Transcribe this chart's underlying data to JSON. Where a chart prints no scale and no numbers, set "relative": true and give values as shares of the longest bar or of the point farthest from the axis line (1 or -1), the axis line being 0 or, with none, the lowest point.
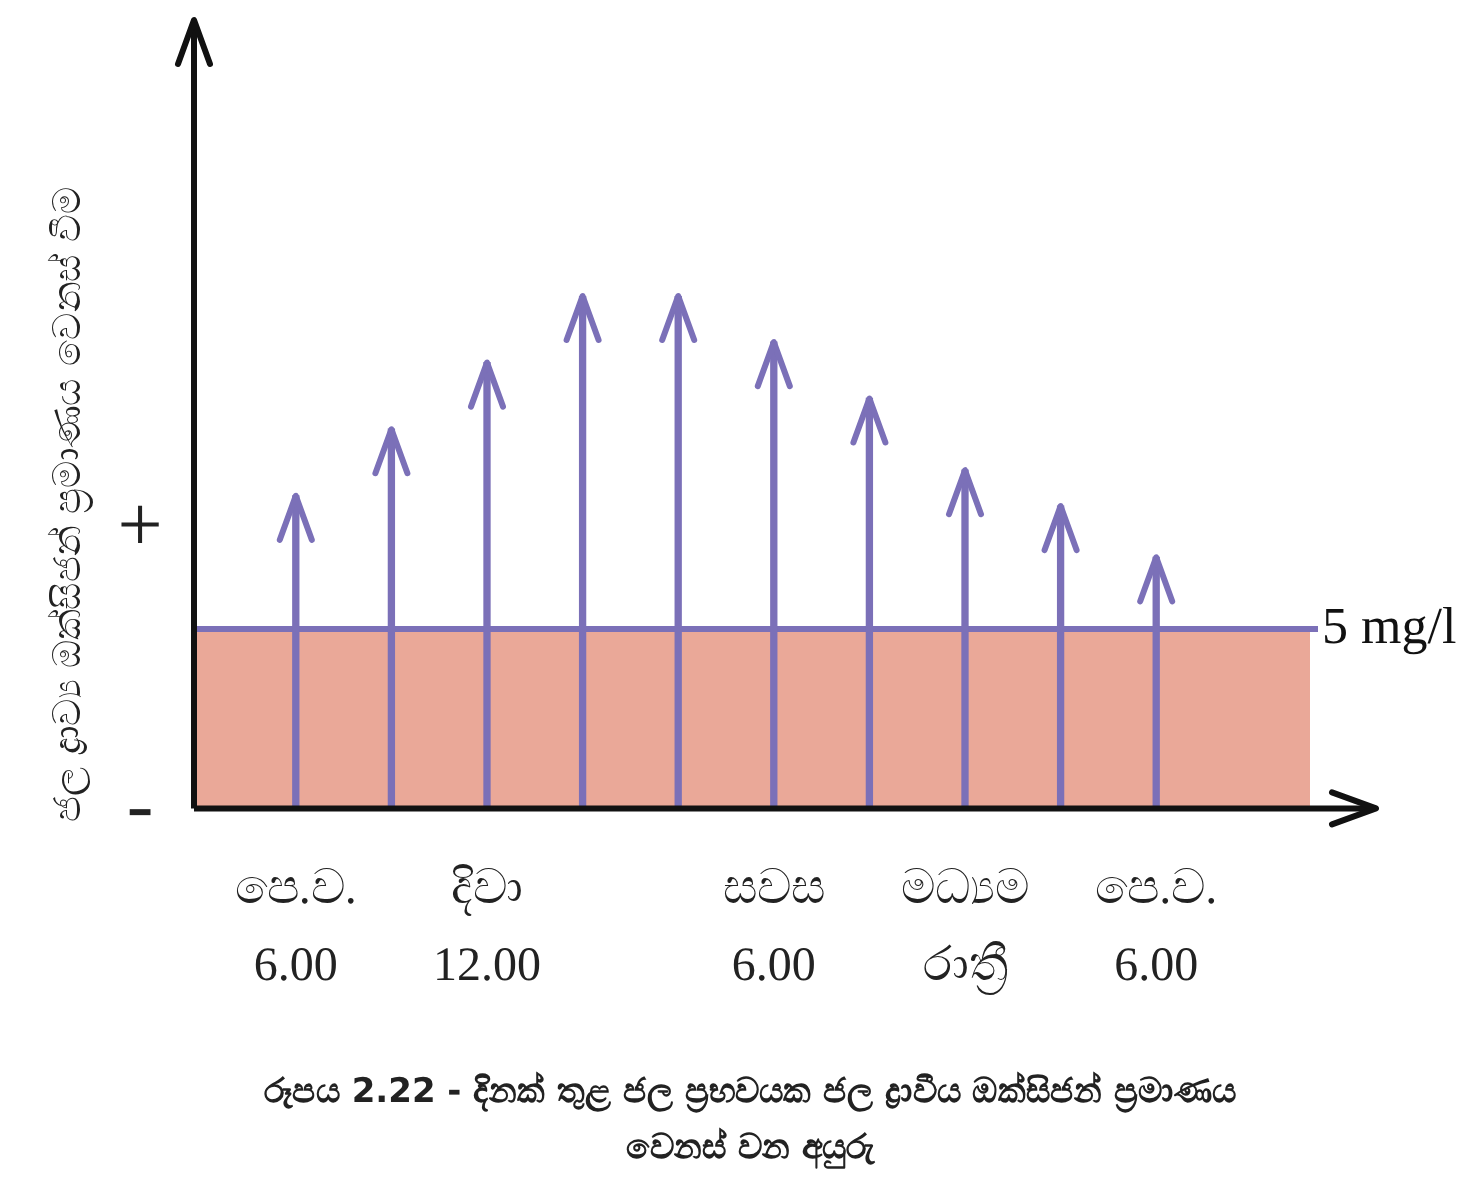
{
  "chart_data": {
    "type": "bar",
    "relative": true,
    "title": "රූපය 2.22 - දිනක් තුළ ජල ප්‍රභවයක ජල ද්‍රාවීය ඔක්සිජන් ප්‍රමාණය වෙනස් වන අයුරු",
    "ylabel": "ජල ද්‍රාව්‍ය ඔක්සිජන් ප්‍රමාණය වෙනස් වීම",
    "categories": [
      "පෙ.ව.\n6.00",
      null,
      "දිවා\n12.00",
      null,
      null,
      "සවස\n6.00",
      null,
      "මධ්‍යම\nරාත්‍රී",
      null,
      "පෙ.ව.\n6.00"
    ],
    "values": [
      0.61,
      0.74,
      0.87,
      1,
      1,
      0.91,
      0.8,
      0.66,
      0.59,
      0.49
    ],
    "color": "#7b70b8",
    "ref_lines": [
      {
        "axis": "y",
        "value": 0.35,
        "label": "5 mg/l",
        "color": "#7b70b8"
      }
    ],
    "bands": [
      {
        "axis": "y",
        "from": 0,
        "to": 0.35,
        "color": "#eaa898"
      }
    ],
    "annotations": [
      "+",
      "-"
    ],
    "grid": false,
    "legend": false
  }
}
